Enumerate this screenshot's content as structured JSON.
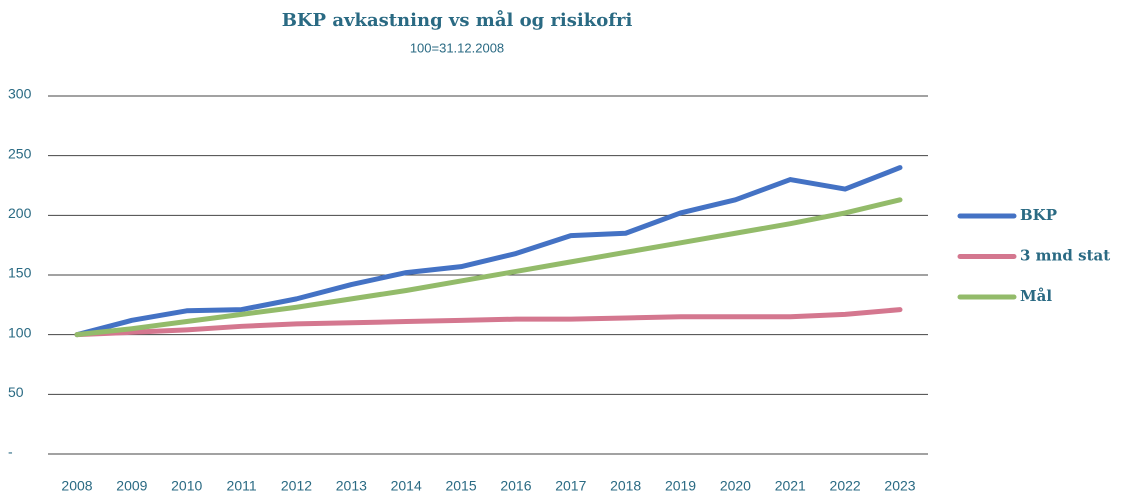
{
  "chart_data": {
    "type": "line",
    "title": "BKP avkastning vs mål og risikofri",
    "subtitle": "100=31.12.2008",
    "categories": [
      "2008",
      "2009",
      "2010",
      "2011",
      "2012",
      "2013",
      "2014",
      "2015",
      "2016",
      "2017",
      "2018",
      "2019",
      "2020",
      "2021",
      "2022",
      "2023"
    ],
    "series": [
      {
        "name": "BKP",
        "color": "#4472c4",
        "values": [
          100,
          112,
          120,
          121,
          130,
          142,
          152,
          157,
          168,
          183,
          185,
          202,
          213,
          230,
          222,
          240
        ]
      },
      {
        "name": "3 mnd stat",
        "color": "#d4778f",
        "values": [
          100,
          102,
          104,
          107,
          109,
          110,
          111,
          112,
          113,
          113,
          114,
          115,
          115,
          115,
          117,
          121
        ]
      },
      {
        "name": "Mål",
        "color": "#93bb6a",
        "values": [
          100,
          105,
          111,
          117,
          123,
          130,
          137,
          145,
          153,
          161,
          169,
          177,
          185,
          193,
          202,
          213
        ]
      }
    ],
    "ylim": [
      0,
      300
    ],
    "yticks": [
      {
        "value": 0,
        "label": "-"
      },
      50,
      100,
      150,
      200,
      250,
      300
    ],
    "grid": true,
    "legend": "right"
  }
}
